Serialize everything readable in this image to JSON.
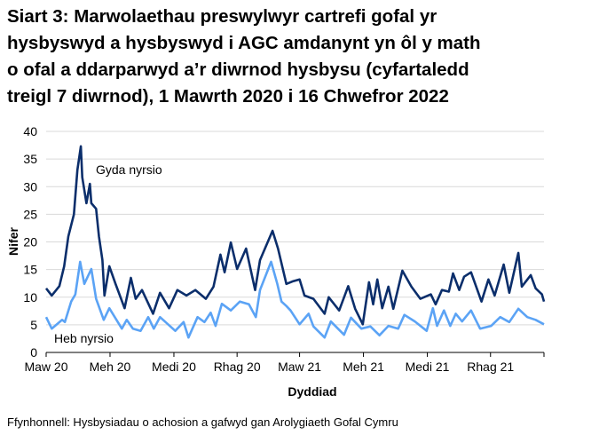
{
  "title": "Siart 3: Marwolaethau preswylwyr cartrefi gofal yr hysbyswyd a hysbyswyd i AGC amdanynt yn ôl y math o ofal a ddarparwyd a’r diwrnod hysbysu (cyfartaledd treigl 7 diwrnod), 1 Mawrth 2020 i 16 Chwefror 2022",
  "source": "Ffynhonnell: Hysbysiadau o achosion a gafwyd gan Arolygiaeth Gofal Cymru",
  "chart_data": {
    "type": "line",
    "title": "Siart 3: Marwolaethau preswylwyr cartrefi gofal yr hysbyswyd a hysbyswyd i AGC amdanynt yn ôl y math o ofal a ddarparwyd a’r diwrnod hysbysu (cyfartaledd treigl 7 diwrnod), 1 Mawrth 2020 i 16 Chwefror 2022",
    "xlabel": "Dyddiad",
    "ylabel": "Nifer",
    "xlim": [
      "2020-03-01",
      "2022-02-16"
    ],
    "ylim": [
      0,
      40
    ],
    "yticks": [
      0,
      5,
      10,
      15,
      20,
      25,
      30,
      35,
      40
    ],
    "xticks": [
      {
        "date": "2020-03-01",
        "label": "Maw 20"
      },
      {
        "date": "2020-06-01",
        "label": "Meh 20"
      },
      {
        "date": "2020-09-01",
        "label": "Medi 20"
      },
      {
        "date": "2020-12-01",
        "label": "Rhag 20"
      },
      {
        "date": "2021-03-01",
        "label": "Maw 21"
      },
      {
        "date": "2021-06-01",
        "label": "Meh 21"
      },
      {
        "date": "2021-09-01",
        "label": "Medi 21"
      },
      {
        "date": "2021-12-01",
        "label": "Rhag 21"
      }
    ],
    "grid": "horizontal",
    "legend": "inline labels",
    "series": [
      {
        "name": "Gyda nyrsio",
        "color": "#0b2e6b",
        "points": [
          [
            "2020-03-01",
            11.6
          ],
          [
            "2020-03-09",
            10.3
          ],
          [
            "2020-03-20",
            12
          ],
          [
            "2020-03-27",
            15.6
          ],
          [
            "2020-04-02",
            21
          ],
          [
            "2020-04-10",
            25
          ],
          [
            "2020-04-15",
            33
          ],
          [
            "2020-04-20",
            37.3
          ],
          [
            "2020-04-22",
            31.7
          ],
          [
            "2020-04-28",
            27
          ],
          [
            "2020-05-03",
            30.5
          ],
          [
            "2020-05-05",
            27
          ],
          [
            "2020-05-12",
            26
          ],
          [
            "2020-05-16",
            21
          ],
          [
            "2020-05-21",
            16.7
          ],
          [
            "2020-05-24",
            10.3
          ],
          [
            "2020-05-31",
            15.6
          ],
          [
            "2020-06-09",
            12.4
          ],
          [
            "2020-06-22",
            8
          ],
          [
            "2020-07-01",
            13.5
          ],
          [
            "2020-07-08",
            9.7
          ],
          [
            "2020-07-17",
            11.3
          ],
          [
            "2020-08-02",
            7
          ],
          [
            "2020-08-12",
            10.8
          ],
          [
            "2020-08-25",
            8
          ],
          [
            "2020-09-06",
            11.3
          ],
          [
            "2020-09-19",
            10.3
          ],
          [
            "2020-10-02",
            11.3
          ],
          [
            "2020-10-17",
            9.7
          ],
          [
            "2020-10-28",
            11.9
          ],
          [
            "2020-11-07",
            17.7
          ],
          [
            "2020-11-13",
            14.5
          ],
          [
            "2020-11-22",
            19.9
          ],
          [
            "2020-12-01",
            15.1
          ],
          [
            "2020-12-14",
            18.8
          ],
          [
            "2020-12-27",
            11.3
          ],
          [
            "2021-01-03",
            16.7
          ],
          [
            "2021-01-21",
            22
          ],
          [
            "2021-01-29",
            18.8
          ],
          [
            "2021-02-10",
            12.4
          ],
          [
            "2021-02-20",
            12.9
          ],
          [
            "2021-03-01",
            13.2
          ],
          [
            "2021-03-08",
            10.3
          ],
          [
            "2021-03-21",
            9.7
          ],
          [
            "2021-04-06",
            7
          ],
          [
            "2021-04-12",
            10
          ],
          [
            "2021-04-27",
            7.6
          ],
          [
            "2021-05-10",
            12
          ],
          [
            "2021-05-20",
            7.9
          ],
          [
            "2021-05-31",
            5.1
          ],
          [
            "2021-06-09",
            12.7
          ],
          [
            "2021-06-15",
            8.7
          ],
          [
            "2021-06-21",
            13.2
          ],
          [
            "2021-06-28",
            8
          ],
          [
            "2021-07-07",
            11.9
          ],
          [
            "2021-07-14",
            7.9
          ],
          [
            "2021-07-27",
            14.8
          ],
          [
            "2021-08-09",
            11.9
          ],
          [
            "2021-08-22",
            9.7
          ],
          [
            "2021-09-06",
            10.5
          ],
          [
            "2021-09-13",
            8.7
          ],
          [
            "2021-09-22",
            11.3
          ],
          [
            "2021-10-02",
            11
          ],
          [
            "2021-10-08",
            14.3
          ],
          [
            "2021-10-17",
            11.3
          ],
          [
            "2021-10-24",
            13.7
          ],
          [
            "2021-11-03",
            14.5
          ],
          [
            "2021-11-18",
            9.2
          ],
          [
            "2021-11-28",
            13.2
          ],
          [
            "2021-12-07",
            10.3
          ],
          [
            "2021-12-20",
            15.9
          ],
          [
            "2021-12-28",
            10.8
          ],
          [
            "2022-01-10",
            18
          ],
          [
            "2022-01-15",
            11.9
          ],
          [
            "2022-01-28",
            14
          ],
          [
            "2022-02-04",
            11.6
          ],
          [
            "2022-02-13",
            10.5
          ],
          [
            "2022-02-16",
            9.2
          ]
        ]
      },
      {
        "name": "Heb nyrsio",
        "color": "#5ba3f5",
        "points": [
          [
            "2020-03-01",
            6.4
          ],
          [
            "2020-03-09",
            4.3
          ],
          [
            "2020-03-24",
            5.9
          ],
          [
            "2020-03-28",
            5.5
          ],
          [
            "2020-04-06",
            9.2
          ],
          [
            "2020-04-12",
            10.5
          ],
          [
            "2020-04-19",
            16.4
          ],
          [
            "2020-04-25",
            12.4
          ],
          [
            "2020-05-05",
            15.1
          ],
          [
            "2020-05-12",
            9.7
          ],
          [
            "2020-05-23",
            5.9
          ],
          [
            "2020-05-31",
            8
          ],
          [
            "2020-06-18",
            4.3
          ],
          [
            "2020-06-25",
            5.9
          ],
          [
            "2020-07-04",
            4.3
          ],
          [
            "2020-07-15",
            3.9
          ],
          [
            "2020-07-26",
            6.4
          ],
          [
            "2020-08-03",
            4.3
          ],
          [
            "2020-08-12",
            6.4
          ],
          [
            "2020-09-03",
            3.9
          ],
          [
            "2020-09-15",
            5.5
          ],
          [
            "2020-09-22",
            2.7
          ],
          [
            "2020-10-05",
            6.4
          ],
          [
            "2020-10-15",
            5.5
          ],
          [
            "2020-10-24",
            7.2
          ],
          [
            "2020-10-31",
            4.8
          ],
          [
            "2020-11-09",
            8.8
          ],
          [
            "2020-11-22",
            7.6
          ],
          [
            "2020-12-05",
            9.2
          ],
          [
            "2020-12-18",
            8.7
          ],
          [
            "2020-12-28",
            6.4
          ],
          [
            "2021-01-03",
            11.3
          ],
          [
            "2021-01-19",
            16.4
          ],
          [
            "2021-01-28",
            12.4
          ],
          [
            "2021-02-03",
            9.2
          ],
          [
            "2021-02-10",
            8.4
          ],
          [
            "2021-02-16",
            7.6
          ],
          [
            "2021-03-01",
            5.1
          ],
          [
            "2021-03-14",
            7
          ],
          [
            "2021-03-21",
            4.7
          ],
          [
            "2021-04-06",
            2.7
          ],
          [
            "2021-04-15",
            5.6
          ],
          [
            "2021-05-04",
            3.2
          ],
          [
            "2021-05-14",
            6.3
          ],
          [
            "2021-05-29",
            4.3
          ],
          [
            "2021-06-11",
            4.7
          ],
          [
            "2021-06-24",
            3.1
          ],
          [
            "2021-07-07",
            4.8
          ],
          [
            "2021-07-21",
            4.3
          ],
          [
            "2021-07-30",
            6.8
          ],
          [
            "2021-08-14",
            5.6
          ],
          [
            "2021-08-31",
            3.9
          ],
          [
            "2021-09-09",
            8
          ],
          [
            "2021-09-15",
            4.8
          ],
          [
            "2021-09-25",
            7.6
          ],
          [
            "2021-10-04",
            4.8
          ],
          [
            "2021-10-12",
            7
          ],
          [
            "2021-10-21",
            5.6
          ],
          [
            "2021-11-03",
            7.6
          ],
          [
            "2021-11-16",
            4.3
          ],
          [
            "2021-12-02",
            4.8
          ],
          [
            "2021-12-15",
            6.4
          ],
          [
            "2021-12-28",
            5.5
          ],
          [
            "2022-01-10",
            7.9
          ],
          [
            "2022-01-23",
            6.4
          ],
          [
            "2022-02-04",
            5.9
          ],
          [
            "2022-02-16",
            5.1
          ]
        ]
      }
    ]
  }
}
